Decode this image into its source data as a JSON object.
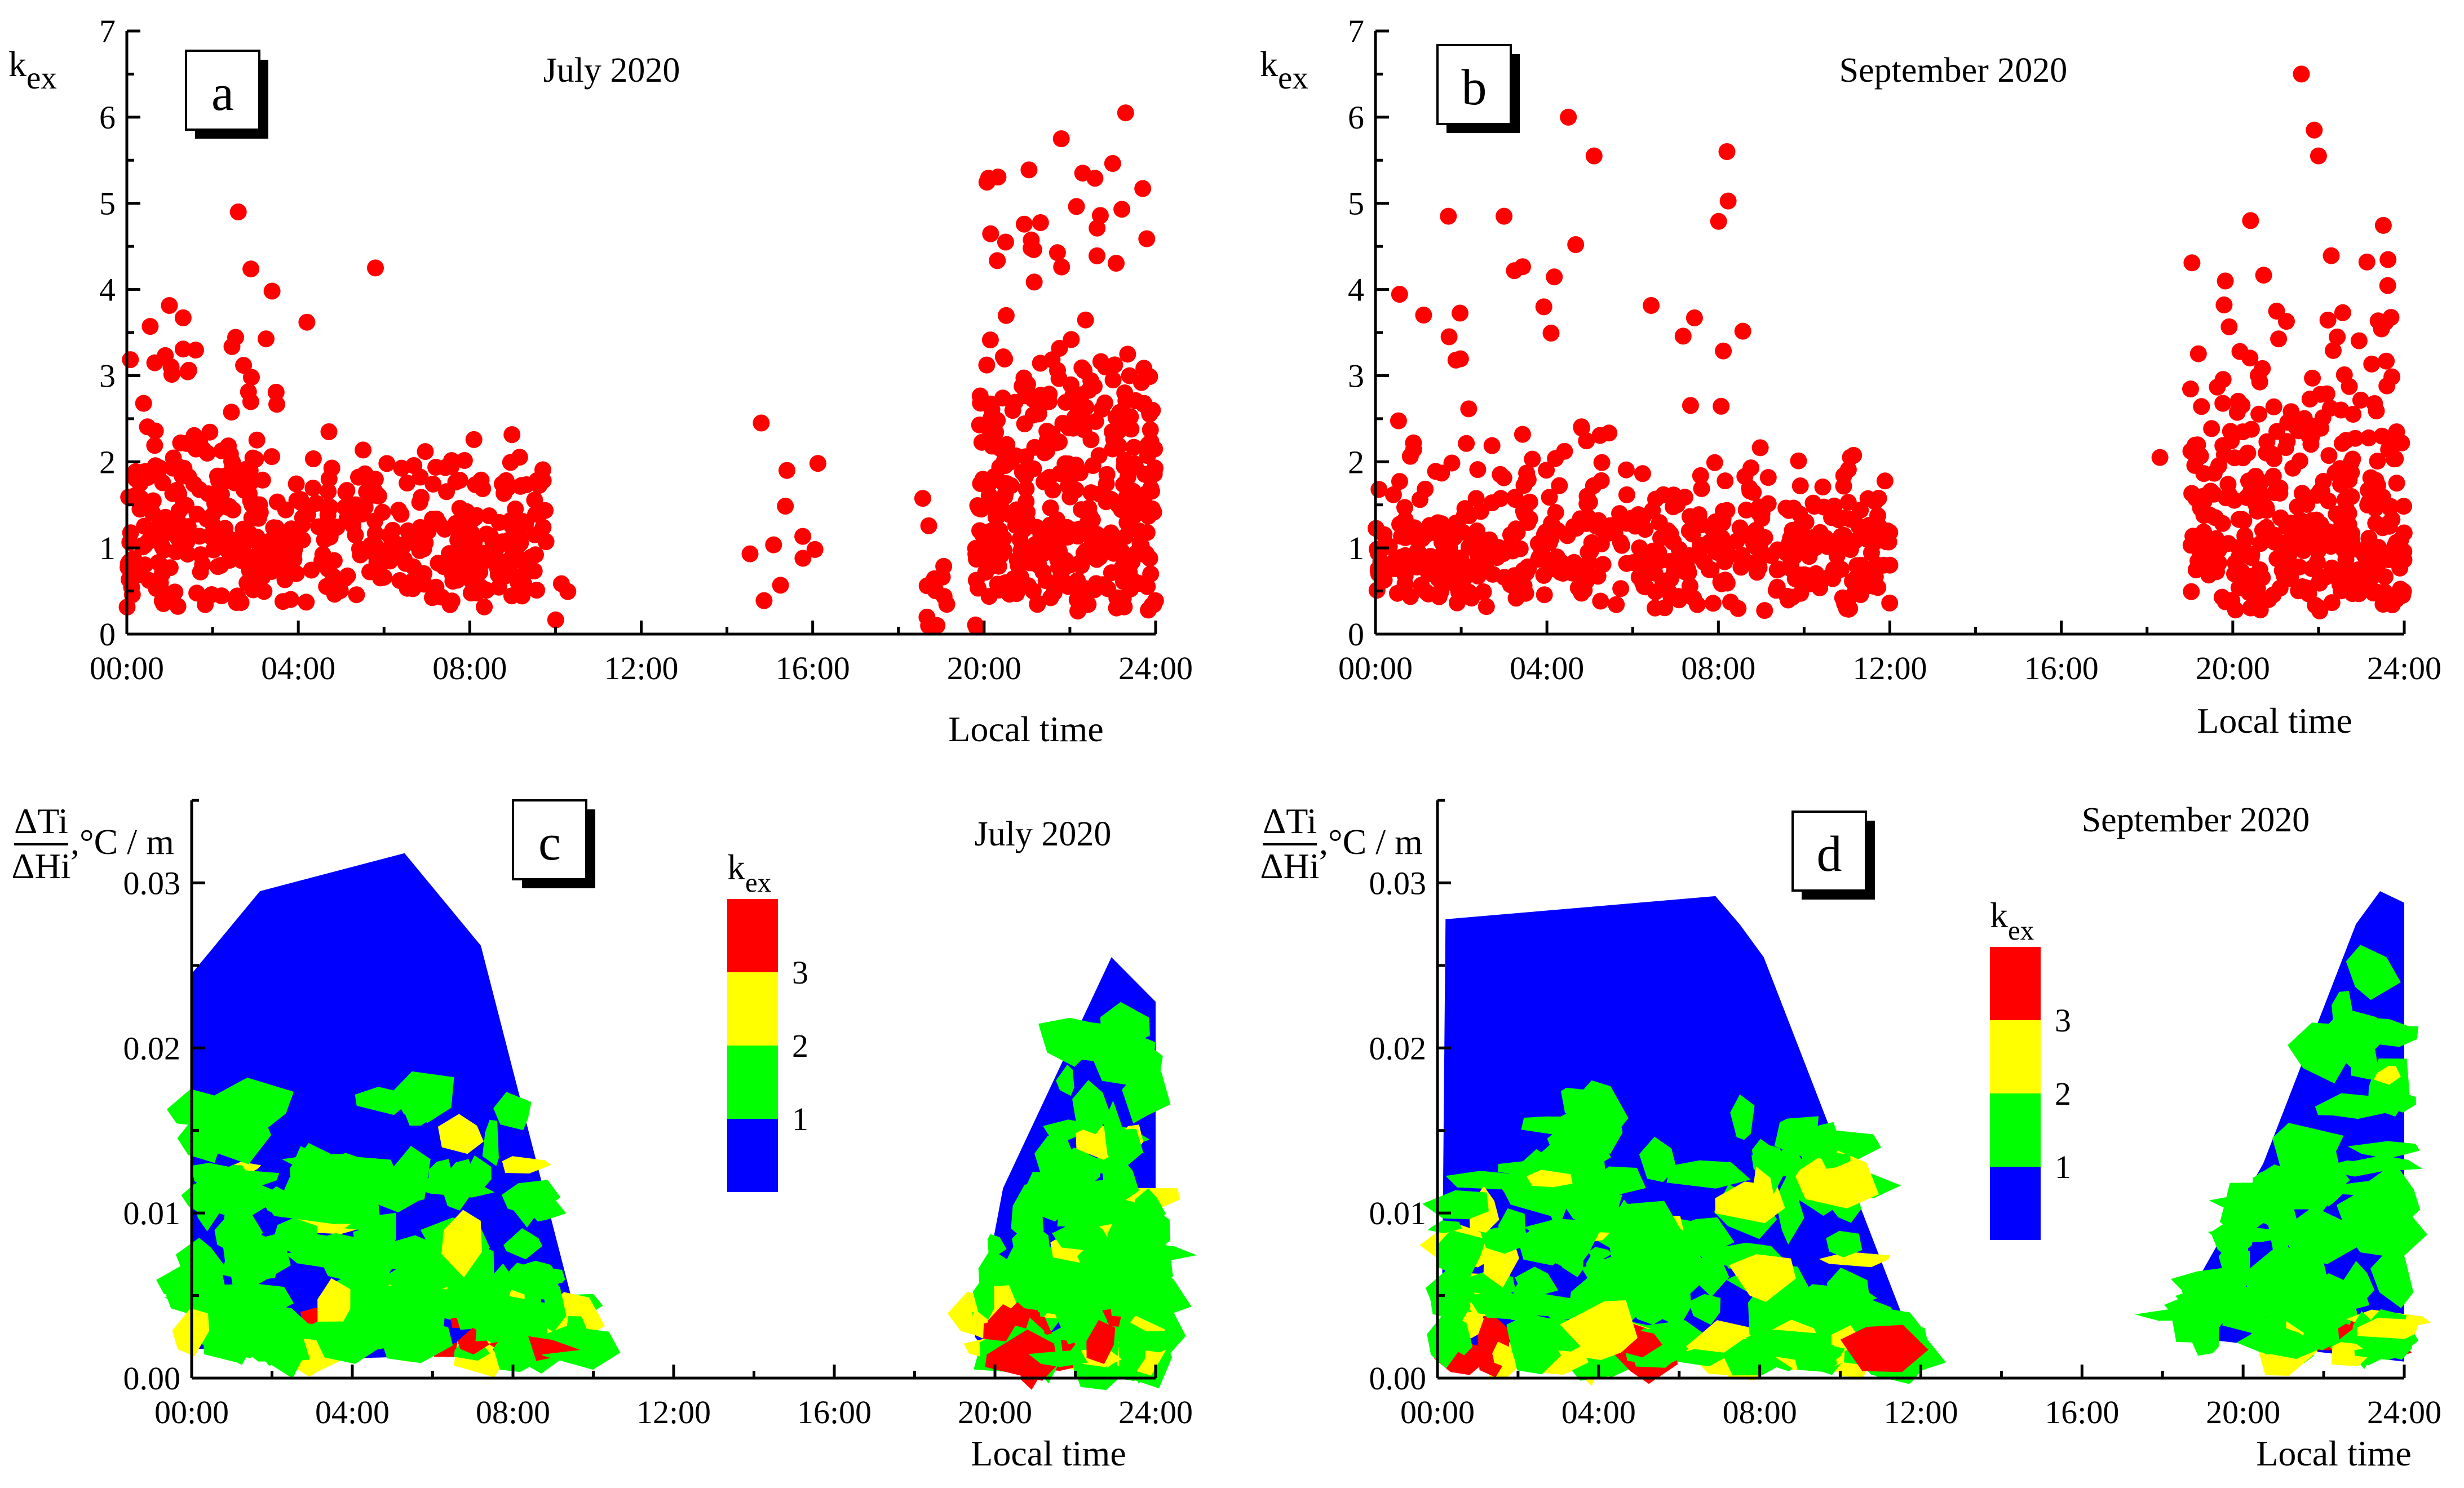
{
  "colors": {
    "scatter": "#ff0000",
    "k1": "#0000ff",
    "k2": "#00ff00",
    "k3": "#ffff00",
    "k4": "#ff0000"
  },
  "chart_data": [
    {
      "id": "a",
      "type": "scatter",
      "letter": "a",
      "title": "July 2020",
      "xlabel": "Local time",
      "ylabel_main": "k",
      "ylabel_sub": "ex",
      "xticks": [
        "00:00",
        "04:00",
        "08:00",
        "12:00",
        "16:00",
        "20:00",
        "24:00"
      ],
      "yticks": [
        "0",
        "1",
        "2",
        "3",
        "4",
        "5",
        "6",
        "7"
      ],
      "xlim": [
        0,
        24
      ],
      "ylim": [
        0,
        7
      ],
      "notable_points": [
        [
          2.6,
          4.9
        ],
        [
          5.8,
          4.25
        ],
        [
          4.2,
          3.62
        ],
        [
          14.8,
          2.45
        ],
        [
          15.4,
          1.9
        ],
        [
          18.9,
          0.1
        ],
        [
          23.3,
          6.05
        ],
        [
          21.8,
          5.75
        ],
        [
          22.3,
          5.35
        ],
        [
          20.5,
          4.55
        ]
      ],
      "clusters": [
        {
          "x": [
            0,
            9.8
          ],
          "ybase": 0.75,
          "ytop": 2.0,
          "n": 420
        },
        {
          "x": [
            0,
            3.5
          ],
          "ybase": 1.5,
          "ytop": 3.9,
          "n": 70
        },
        {
          "x": [
            10,
            11
          ],
          "ybase": 0.3,
          "ytop": 0.5,
          "n": 3
        },
        {
          "x": [
            14.4,
            16.2
          ],
          "ybase": 0.6,
          "ytop": 2.3,
          "n": 9
        },
        {
          "x": [
            18.5,
            20
          ],
          "ybase": 0.1,
          "ytop": 1.7,
          "n": 16
        },
        {
          "x": [
            19.8,
            24
          ],
          "ybase": 0.7,
          "ytop": 3.0,
          "n": 330
        },
        {
          "x": [
            20,
            24
          ],
          "ybase": 2.0,
          "ytop": 5.5,
          "n": 60
        }
      ]
    },
    {
      "id": "b",
      "type": "scatter",
      "letter": "b",
      "title": "September 2020",
      "xlabel": "Local time",
      "ylabel_main": "k",
      "ylabel_sub": "ex",
      "xticks": [
        "00:00",
        "04:00",
        "08:00",
        "12:00",
        "16:00",
        "20:00",
        "24:00"
      ],
      "yticks": [
        "0",
        "1",
        "2",
        "3",
        "4",
        "5",
        "6",
        "7"
      ],
      "xlim": [
        0,
        24
      ],
      "ylim": [
        0,
        7
      ],
      "notable_points": [
        [
          21.6,
          6.5
        ],
        [
          4.5,
          6.0
        ],
        [
          5.1,
          5.55
        ],
        [
          8.2,
          5.6
        ],
        [
          21.9,
          5.85
        ],
        [
          22.0,
          5.55
        ],
        [
          1.7,
          4.85
        ],
        [
          3.0,
          4.85
        ],
        [
          18.3,
          2.05
        ],
        [
          12.0,
          0.8
        ]
      ],
      "clusters": [
        {
          "x": [
            0,
            12
          ],
          "ybase": 0.7,
          "ytop": 1.8,
          "n": 480
        },
        {
          "x": [
            0.5,
            9
          ],
          "ybase": 2.0,
          "ytop": 4.7,
          "n": 40
        },
        {
          "x": [
            19,
            24
          ],
          "ybase": 0.7,
          "ytop": 2.6,
          "n": 300
        },
        {
          "x": [
            19,
            24
          ],
          "ybase": 2.5,
          "ytop": 4.7,
          "n": 60
        }
      ]
    },
    {
      "id": "c",
      "type": "contour",
      "letter": "c",
      "title": "July 2020",
      "xlabel": "Local time",
      "ylabel_num": "ΔTi",
      "ylabel_den": "ΔHi",
      "ylabel_unit": ",°C / m",
      "xticks": [
        "00:00",
        "04:00",
        "08:00",
        "12:00",
        "16:00",
        "20:00",
        "24:00"
      ],
      "yticks": [
        "0.00",
        "0.01",
        "0.02",
        "0.03"
      ],
      "xlim": [
        0,
        24
      ],
      "ylim": [
        0,
        0.035
      ],
      "legend_title_main": "k",
      "legend_title_sub": "ex",
      "legend_labels": [
        "3",
        "2",
        "1"
      ],
      "hull_left": [
        [
          0,
          0.0245
        ],
        [
          1.7,
          0.0295
        ],
        [
          5.3,
          0.0318
        ],
        [
          7.2,
          0.0262
        ],
        [
          9.8,
          0.0016
        ],
        [
          4.0,
          0.0012
        ],
        [
          0,
          0.0018
        ]
      ],
      "hull_right": [
        [
          19.5,
          0.0025
        ],
        [
          20.2,
          0.0115
        ],
        [
          22.9,
          0.0255
        ],
        [
          24,
          0.0228
        ],
        [
          24,
          0.0012
        ],
        [
          20.0,
          0.0008
        ]
      ]
    },
    {
      "id": "d",
      "type": "contour",
      "letter": "d",
      "title": "September 2020",
      "xlabel": "Local time",
      "ylabel_num": "ΔTi",
      "ylabel_den": "ΔHi",
      "ylabel_unit": ",°C / m",
      "xticks": [
        "00:00",
        "04:00",
        "08:00",
        "12:00",
        "16:00",
        "20:00",
        "24:00"
      ],
      "yticks": [
        "0.00",
        "0.01",
        "0.02",
        "0.03"
      ],
      "xlim": [
        0,
        24
      ],
      "ylim": [
        0,
        0.035
      ],
      "legend_title_main": "k",
      "legend_title_sub": "ex",
      "legend_labels": [
        "3",
        "2",
        "1"
      ],
      "hull_left": [
        [
          0.2,
          0.0278
        ],
        [
          6.9,
          0.0292
        ],
        [
          7.5,
          0.0275
        ],
        [
          8.1,
          0.0255
        ],
        [
          9.1,
          0.0192
        ],
        [
          11.95,
          0.0012
        ],
        [
          0.1,
          0.001
        ]
      ],
      "hull_right": [
        [
          18.3,
          0.0035
        ],
        [
          20.5,
          0.013
        ],
        [
          22.8,
          0.0275
        ],
        [
          23.4,
          0.0295
        ],
        [
          24,
          0.0288
        ],
        [
          24,
          0.001
        ],
        [
          18.5,
          0.0025
        ]
      ]
    }
  ]
}
